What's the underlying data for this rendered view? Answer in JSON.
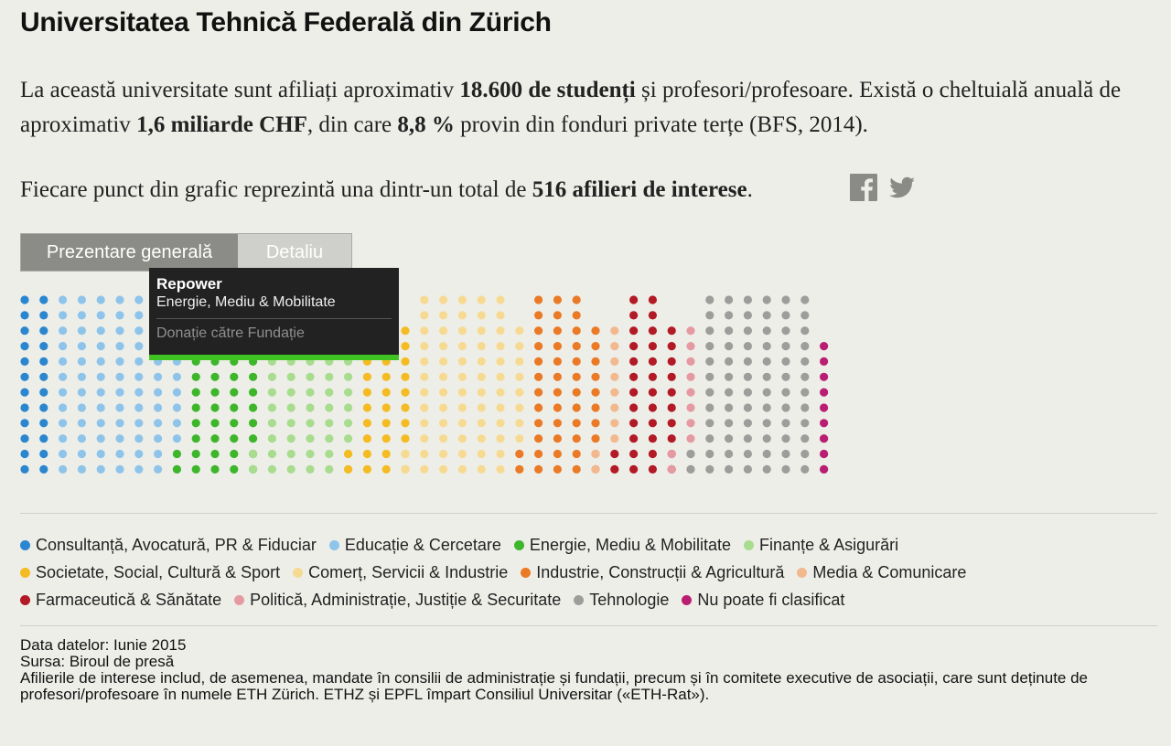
{
  "title": "Universitatea Tehnică Federală din Zürich",
  "intro": {
    "p1_a": "La această universitate sunt afiliați aproximativ ",
    "p1_b": "18.600 de studenți",
    "p1_c": " și profesori/profesoare. Există o cheltuială anuală de aproximativ ",
    "p1_d": "1,6 miliarde CHF",
    "p1_e": ", din care ",
    "p1_f": "8,8 %",
    "p1_g": " provin din fonduri private terțe (BFS, 2014).",
    "p2_a": "Fiecare punct din grafic reprezintă una dintr-un total de ",
    "p2_b": "516 afilieri de interese",
    "p2_c": "."
  },
  "share": {
    "facebook_icon": "facebook-icon",
    "twitter_icon": "twitter-icon"
  },
  "tabs": [
    {
      "label": "Prezentare generală",
      "active": true
    },
    {
      "label": "Detaliu",
      "active": false
    }
  ],
  "tooltip": {
    "name": "Repower",
    "category": "Energie, Mediu & Mobilitate",
    "type": "Donație către Fundație",
    "accent": "#3fc322"
  },
  "chart_data": {
    "type": "scatter",
    "description_unit": "dots",
    "total": 516,
    "rows": 12,
    "highlighted_category": "Energie, Mediu & Mobilitate",
    "categories": [
      {
        "name": "Consultanță, Avocatură, PR & Fiduciar",
        "color": "#2a86cf",
        "count": 24
      },
      {
        "name": "Educație & Cercetare",
        "color": "#8fc4ea",
        "count": 82
      },
      {
        "name": "Energie, Mediu & Mobilitate",
        "color": "#3db62a",
        "count": 48
      },
      {
        "name": "Finanțe & Asigurări",
        "color": "#a8dc8e",
        "count": 60
      },
      {
        "name": "Societate, Social, Cultură & Sport",
        "color": "#f4bb22",
        "count": 36
      },
      {
        "name": "Comerț, Servicii & Industrie",
        "color": "#f7da92",
        "count": 72
      },
      {
        "name": "Industrie, Construcții & Agricultură",
        "color": "#ea7a25",
        "count": 48
      },
      {
        "name": "Media & Comunicare",
        "color": "#f2b98e",
        "count": 12
      },
      {
        "name": "Farmaceutică & Sănătate",
        "color": "#b21a25",
        "count": 36
      },
      {
        "name": "Politică, Administrație, Justiție & Securitate",
        "color": "#e59aa2",
        "count": 12
      },
      {
        "name": "Tehnologie",
        "color": "#9d9d9b",
        "count": 77
      },
      {
        "name": "Nu poate fi clasificat",
        "color": "#ba1e72",
        "count": 9
      }
    ]
  },
  "notes": {
    "date": "Data datelor: Iunie 2015",
    "source": "Sursa: Biroul de presă",
    "footnote": "Afilierile de interese includ, de asemenea, mandate în consilii de administrație și fundații, precum și în comitete executive de asociații, care sunt deținute de profesori/profesoare în numele ETH Zürich. ETHZ și EPFL împart Consiliul Universitar («ETH-Rat»)."
  }
}
